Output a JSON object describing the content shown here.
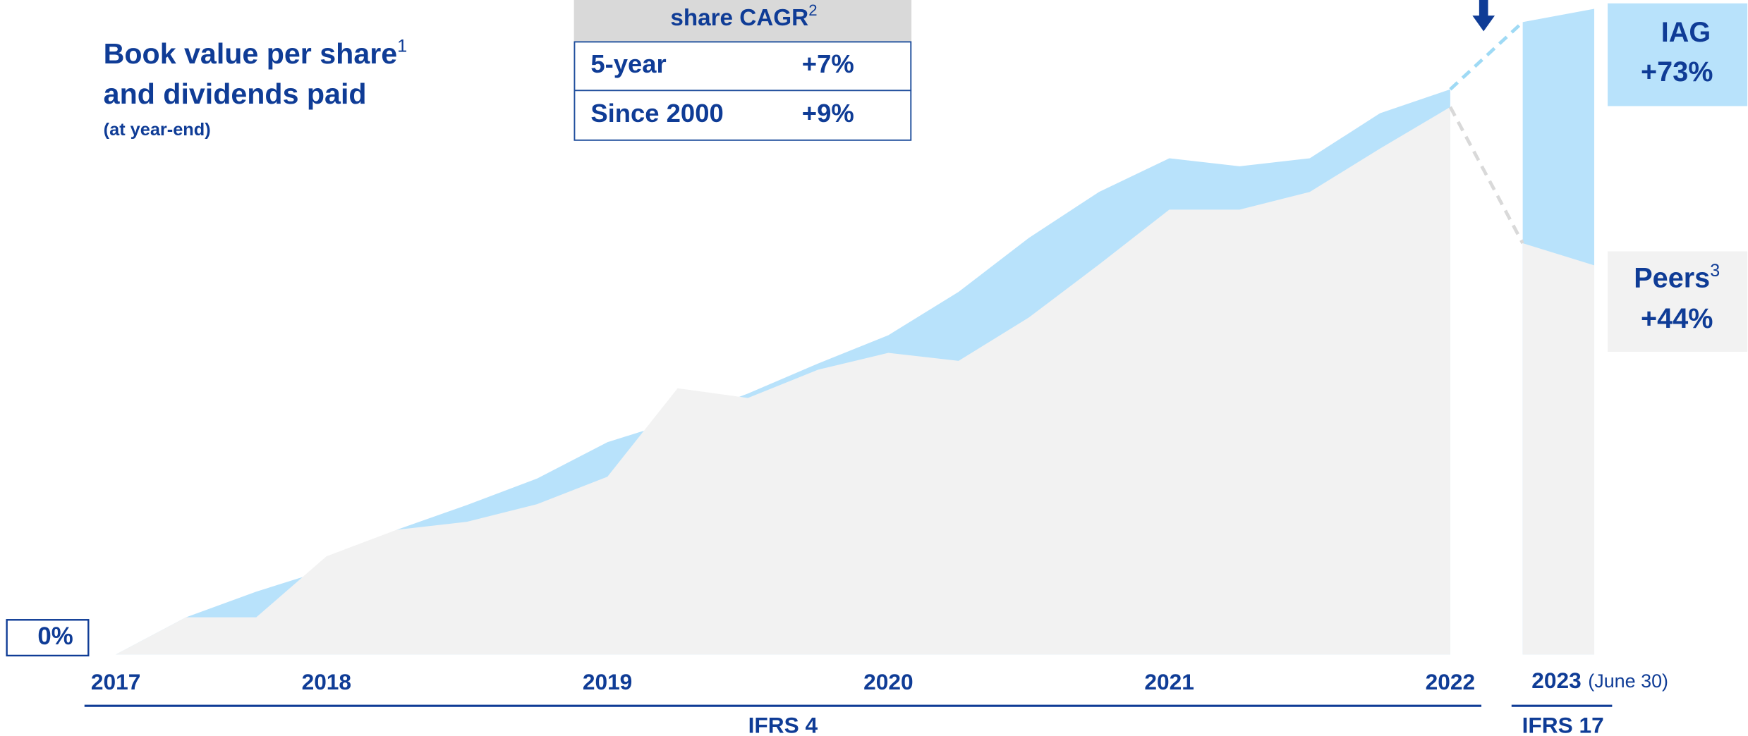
{
  "chart_data": {
    "type": "area",
    "title": "Book value per share",
    "title_sup": "1",
    "title_line2": "and dividends paid",
    "subtitle": "(at year-end)",
    "categories": [
      "2017",
      null,
      null,
      "2018",
      null,
      null,
      null,
      "2019",
      null,
      null,
      null,
      "2020",
      null,
      null,
      null,
      "2021",
      null,
      null,
      null,
      "2022",
      "2023",
      null
    ],
    "category_note": "(June 30)",
    "sections": [
      {
        "label": "IFRS 4",
        "from": 0,
        "to": 19
      },
      {
        "label": "IFRS 17",
        "from": 20,
        "to": 21
      }
    ],
    "ylim": [
      0,
      74
    ],
    "yticks": [
      {
        "value": 0,
        "label": "0%"
      }
    ],
    "series": [
      {
        "name": "IAG",
        "color": "#b8e2fb",
        "values": [
          0,
          4.2,
          7.1,
          9.6,
          14.1,
          16.9,
          19.9,
          24.0,
          26.5,
          29.5,
          32.9,
          36.1,
          41.0,
          47.1,
          52.3,
          56.1,
          55.2,
          56.1,
          61.2,
          63.9,
          71.5,
          73
        ],
        "value_labels": [
          null,
          null,
          null,
          null,
          null,
          null,
          null,
          null,
          null,
          null,
          null,
          null,
          null,
          null,
          null,
          null,
          null,
          null,
          null,
          null,
          null,
          "+73%"
        ]
      },
      {
        "name": "Peers",
        "name_sup": "3",
        "color": "#f2f2f2",
        "values": [
          0,
          4.2,
          4.2,
          11.1,
          14.1,
          15.0,
          17.0,
          20.1,
          30.1,
          29.0,
          32.2,
          34.1,
          33.2,
          38.1,
          44.1,
          50.3,
          50.3,
          52.3,
          57.2,
          61.9,
          46.5,
          44
        ],
        "value_labels": [
          null,
          null,
          null,
          null,
          null,
          null,
          null,
          null,
          null,
          null,
          null,
          null,
          null,
          null,
          null,
          null,
          null,
          null,
          null,
          null,
          null,
          "+44%"
        ]
      }
    ],
    "table": {
      "header": "share CAGR",
      "header_sup": "2",
      "rows": [
        [
          "5-year",
          "+7%"
        ],
        [
          "Since 2000",
          "+9%"
        ]
      ]
    }
  }
}
